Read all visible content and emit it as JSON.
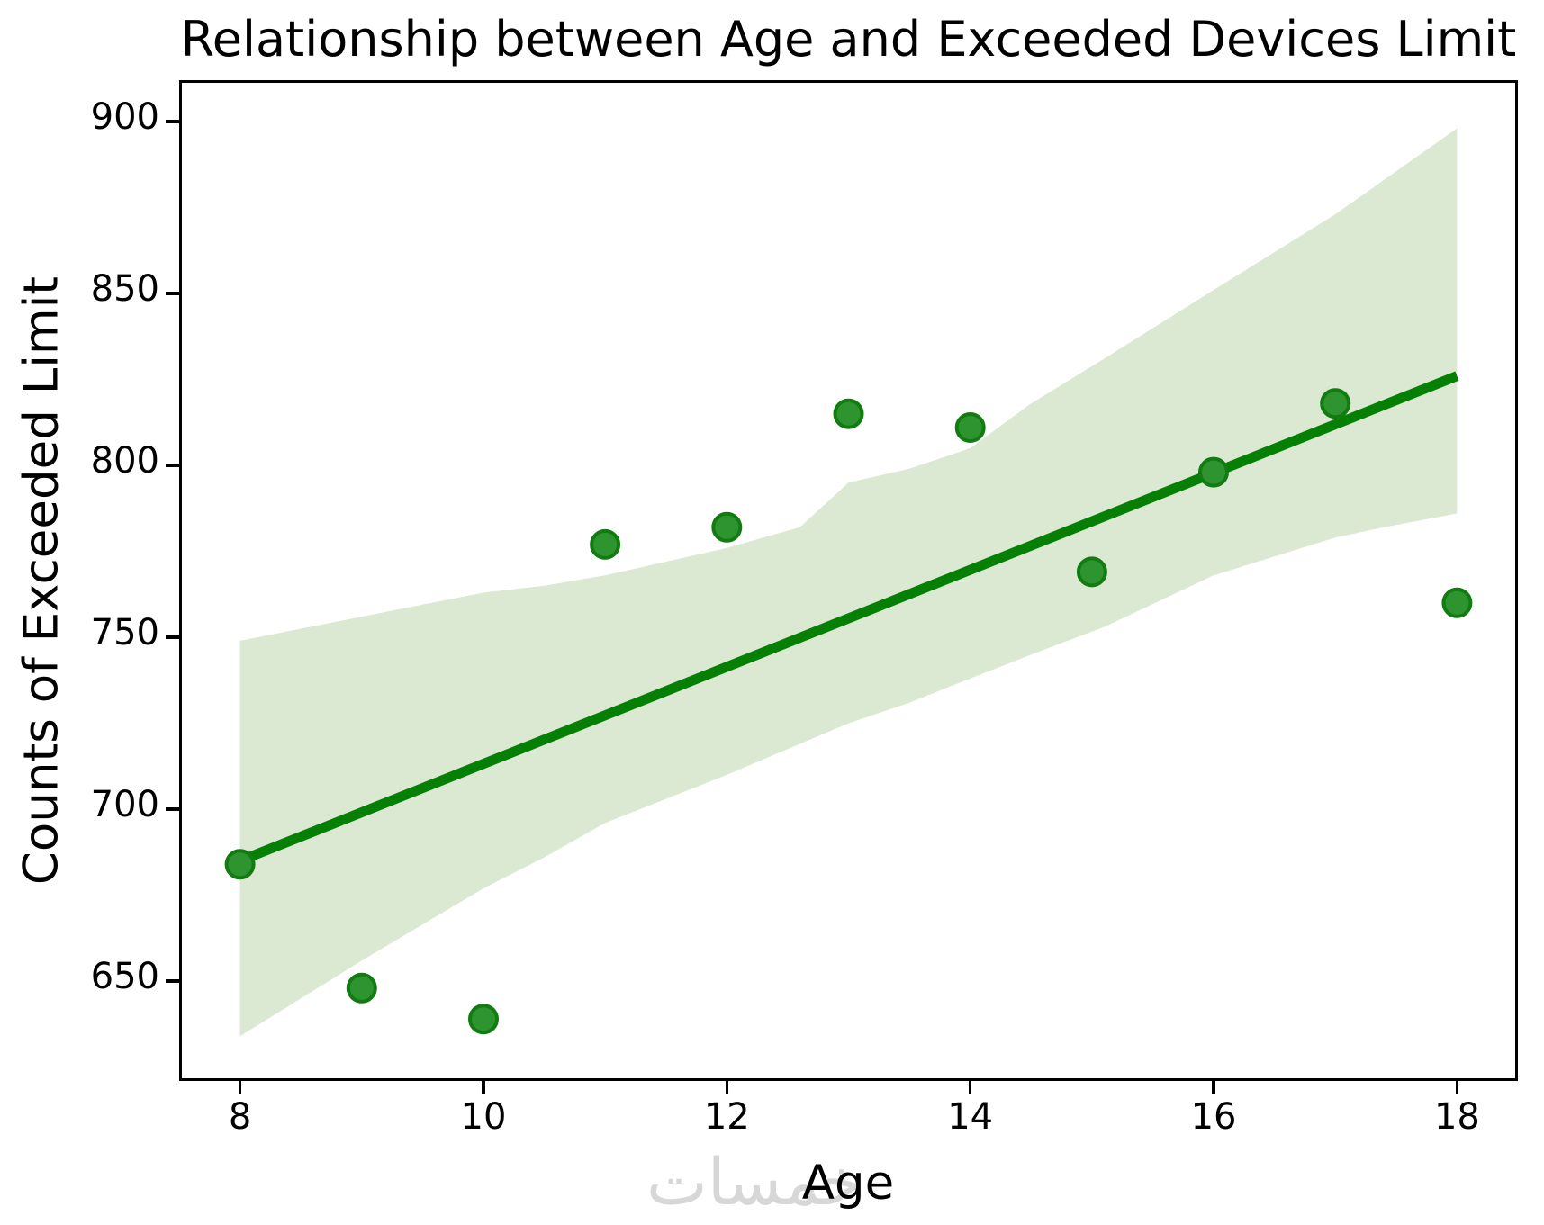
{
  "title": "Relationship between Age and Exceeded Devices Limit",
  "watermark_text": "خمسات",
  "colors": {
    "marker_fill": "#2e9430",
    "marker_edge": "#127c12",
    "regression_line": "#058005",
    "confidence_band": "#dbe9d3",
    "axis": "#000000",
    "watermark": "#d7d7d7"
  },
  "chart_data": {
    "type": "scatter",
    "title": "Relationship between Age and Exceeded Devices Limit",
    "xlabel": "Age",
    "ylabel": "Counts of Exceeded Limit",
    "xlim": [
      7.5,
      18.5
    ],
    "ylim": [
      621,
      912
    ],
    "grid": false,
    "legend": null,
    "x_ticks": [
      8,
      10,
      12,
      14,
      16,
      18
    ],
    "y_ticks": [
      650,
      700,
      750,
      800,
      850,
      900
    ],
    "points": {
      "x": [
        8,
        9,
        10,
        11,
        12,
        13,
        14,
        15,
        16,
        17,
        18
      ],
      "y": [
        684,
        648,
        639,
        777,
        782,
        815,
        811,
        769,
        798,
        818,
        760
      ]
    },
    "regression_line": {
      "x": [
        8,
        18
      ],
      "y": [
        685,
        826
      ]
    },
    "confidence_band": [
      {
        "x": 8,
        "lo": 634,
        "hi": 749
      },
      {
        "x": 9,
        "lo": 656,
        "hi": 756
      },
      {
        "x": 10,
        "lo": 677,
        "hi": 763
      },
      {
        "x": 10.5,
        "lo": 686,
        "hi": 765
      },
      {
        "x": 11,
        "lo": 696,
        "hi": 768
      },
      {
        "x": 12,
        "lo": 710,
        "hi": 776
      },
      {
        "x": 12.6,
        "lo": 719,
        "hi": 782
      },
      {
        "x": 13,
        "lo": 725,
        "hi": 795
      },
      {
        "x": 13.5,
        "lo": 731,
        "hi": 799
      },
      {
        "x": 14,
        "lo": 738,
        "hi": 805
      },
      {
        "x": 14.5,
        "lo": 745,
        "hi": 818
      },
      {
        "x": 15.1,
        "lo": 753,
        "hi": 831
      },
      {
        "x": 16,
        "lo": 768,
        "hi": 851
      },
      {
        "x": 17,
        "lo": 779,
        "hi": 873
      },
      {
        "x": 17.4,
        "lo": 782,
        "hi": 883
      },
      {
        "x": 18,
        "lo": 786,
        "hi": 898
      }
    ]
  }
}
